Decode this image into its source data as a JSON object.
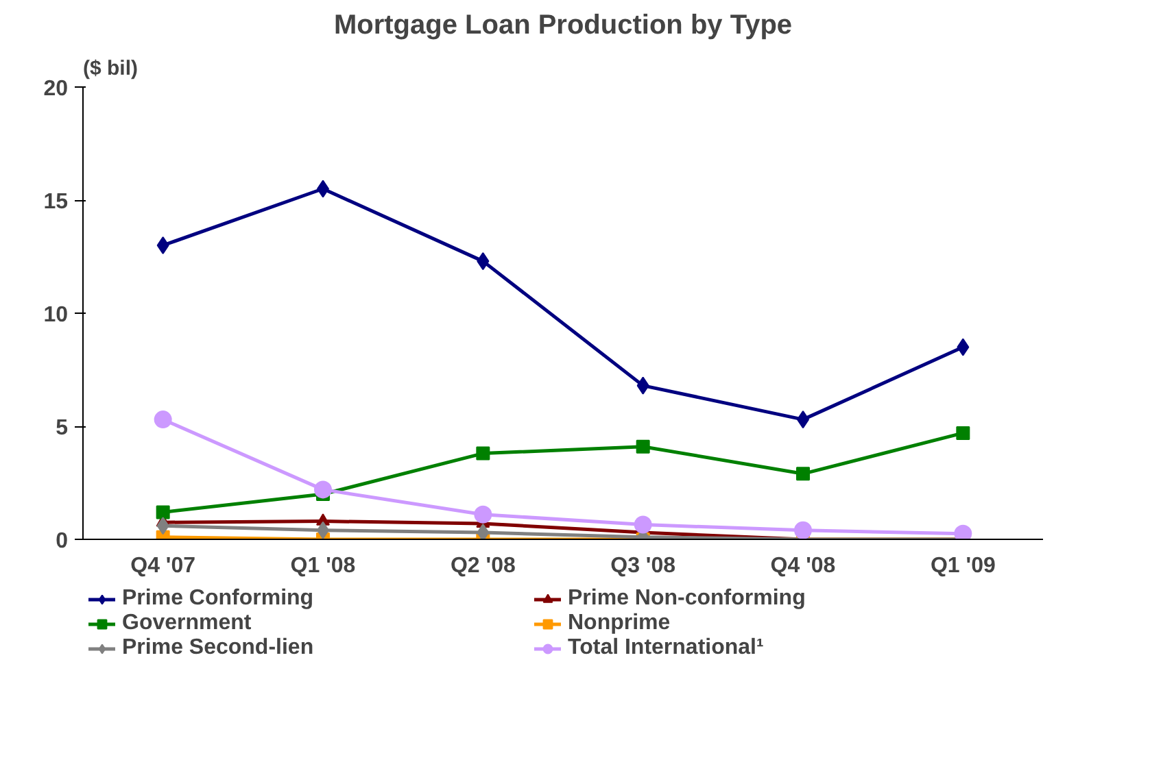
{
  "chart_data": {
    "type": "line",
    "title": "Mortgage Loan Production by Type",
    "ylabel": "($ bil)",
    "categories": [
      "Q4 '07",
      "Q1 '08",
      "Q2 '08",
      "Q3 '08",
      "Q4 '08",
      "Q1 '09"
    ],
    "ylim": [
      0,
      20
    ],
    "yticks": [
      0,
      5,
      10,
      15,
      20
    ],
    "grid": false,
    "legend": "bottom",
    "series": [
      {
        "name": "Prime Conforming",
        "color": "#000080",
        "marker": "diamond",
        "values": [
          13.0,
          15.5,
          12.3,
          6.8,
          5.3,
          8.5
        ]
      },
      {
        "name": "Prime Non-conforming",
        "color": "#800000",
        "marker": "triangle",
        "values": [
          0.75,
          0.8,
          0.7,
          0.3,
          0.0,
          0.0
        ]
      },
      {
        "name": "Government",
        "color": "#008000",
        "marker": "square",
        "values": [
          1.2,
          2.0,
          3.8,
          4.1,
          2.9,
          4.7
        ]
      },
      {
        "name": "Nonprime",
        "color": "#ff9900",
        "marker": "square",
        "values": [
          0.1,
          0.0,
          0.0,
          0.0,
          0.0,
          0.0
        ]
      },
      {
        "name": "Prime Second-lien",
        "color": "#808080",
        "marker": "diamond",
        "values": [
          0.6,
          0.4,
          0.3,
          0.1,
          0.0,
          0.0
        ]
      },
      {
        "name": "Total International¹",
        "color": "#cc99ff",
        "marker": "circle",
        "values": [
          5.3,
          2.2,
          1.1,
          0.65,
          0.4,
          0.25
        ]
      }
    ]
  }
}
